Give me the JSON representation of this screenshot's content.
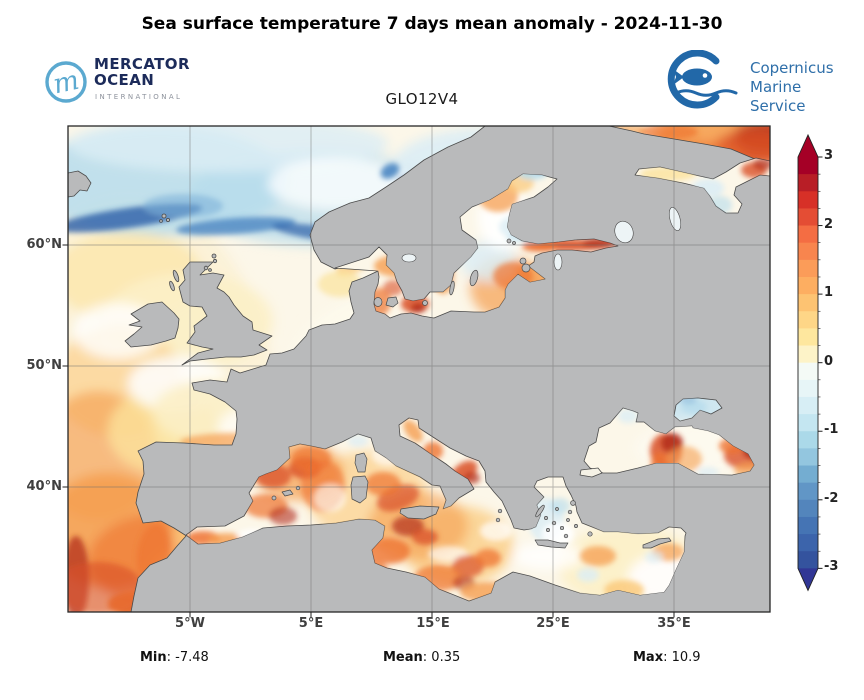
{
  "header": {
    "title": "Sea surface temperature 7 days mean anomaly - 2024-11-30",
    "model_label": "GLO12V4",
    "mercator_logo": {
      "line1": "MERCATOR",
      "line2": "OCEAN",
      "line3": "INTERNATIONAL"
    },
    "copernicus_logo": {
      "line1": "Copernicus",
      "line2": "Marine Service"
    }
  },
  "map": {
    "x_tick_labels": [
      "5°W",
      "5°E",
      "15°E",
      "25°E",
      "35°E"
    ],
    "y_tick_labels": [
      "60°N",
      "50°N",
      "40°N"
    ]
  },
  "colorbar": {
    "tick_labels": [
      "3",
      "2",
      "1",
      "0",
      "-1",
      "-2",
      "-3"
    ],
    "extend_over": "#a50026",
    "extend_under": "#313695",
    "segment_colors": [
      "#a50026",
      "#b81e26",
      "#d73027",
      "#e44d34",
      "#f46d43",
      "#f8854e",
      "#fb9c59",
      "#fdae61",
      "#fdc372",
      "#fed687",
      "#fee79e",
      "#fdf3c8",
      "#f4faf6",
      "#e7f5f7",
      "#d7eef5",
      "#c4e6f1",
      "#abd9e9",
      "#93c6df",
      "#74add1",
      "#6196c6",
      "#5385bc",
      "#4574b4",
      "#3c64ab",
      "#34539e"
    ]
  },
  "stats": {
    "sep": ": ",
    "min_label": "Min",
    "min_value": "-7.48",
    "mean_label": "Mean",
    "mean_value": "0.35",
    "max_label": "Max",
    "max_value": "10.9"
  },
  "colors": {
    "land": "#b9babb",
    "sea_base": "#fcf7e9",
    "mercator_navy": "#1c2b5a",
    "mercator_circle": "#5ba9d0",
    "copernicus_blue": "#2268a8"
  },
  "chart_data": {
    "type": "heatmap",
    "title": "Sea surface temperature 7 days mean anomaly - 2024-11-30",
    "model": "GLO12V4",
    "colorbar_range": [
      -3,
      3
    ],
    "colorbar_ticks": [
      3,
      2,
      1,
      0,
      -1,
      -2,
      -3
    ],
    "x_tick_labels": [
      "5°W",
      "5°E",
      "15°E",
      "25°E",
      "35°E"
    ],
    "y_tick_labels": [
      "60°N",
      "50°N",
      "40°N"
    ],
    "stats": {
      "min": -7.48,
      "mean": 0.35,
      "max": 10.9
    }
  }
}
